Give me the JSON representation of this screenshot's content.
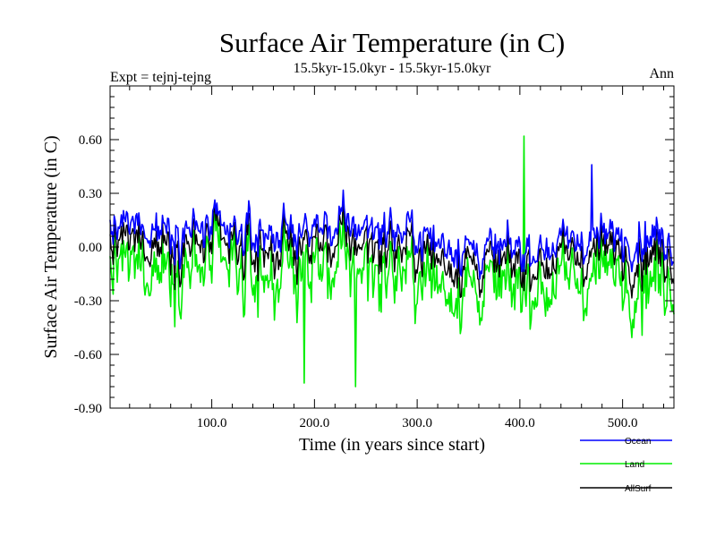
{
  "chart_data": {
    "type": "line",
    "title": "Surface Air Temperature (in C)",
    "subtitle": "15.5kyr-15.0kyr - 15.5kyr-15.0kyr",
    "left_label": "Expt = tejnj-tejng",
    "right_label": "Ann",
    "xlabel": "Time (in years since start)",
    "ylabel": "Surface Air Temperature (in C)",
    "xlim": [
      1,
      550
    ],
    "ylim": [
      -0.9,
      0.9
    ],
    "x_ticks": [
      100,
      200,
      300,
      400,
      500
    ],
    "x_tick_labels": [
      "100.0",
      "200.0",
      "300.0",
      "400.0",
      "500.0"
    ],
    "y_ticks": [
      -0.9,
      -0.6,
      -0.3,
      0.0,
      0.3,
      0.6
    ],
    "y_tick_labels": [
      "-0.90",
      "-0.60",
      "-0.30",
      "0.00",
      "0.30",
      "0.60"
    ],
    "legend_position": "bottom-right outside",
    "series": [
      {
        "name": "Ocean",
        "color": "#0000ff",
        "mean": 0.06,
        "amp": 0.11,
        "min": -0.36,
        "max": 0.46
      },
      {
        "name": "Land",
        "color": "#00ee00",
        "mean": -0.16,
        "amp": 0.19,
        "min": -0.78,
        "max": 0.62
      },
      {
        "name": "AllSurf",
        "color": "#000000",
        "mean": 0.0,
        "amp": 0.09,
        "min": -0.35,
        "max": 0.3
      }
    ],
    "annotations": [
      {
        "series": "Land",
        "x": 404,
        "y": 0.62
      },
      {
        "series": "Land",
        "x": 240,
        "y": -0.78
      },
      {
        "series": "Land",
        "x": 190,
        "y": -0.76
      },
      {
        "series": "Ocean",
        "x": 470,
        "y": 0.46
      }
    ]
  }
}
